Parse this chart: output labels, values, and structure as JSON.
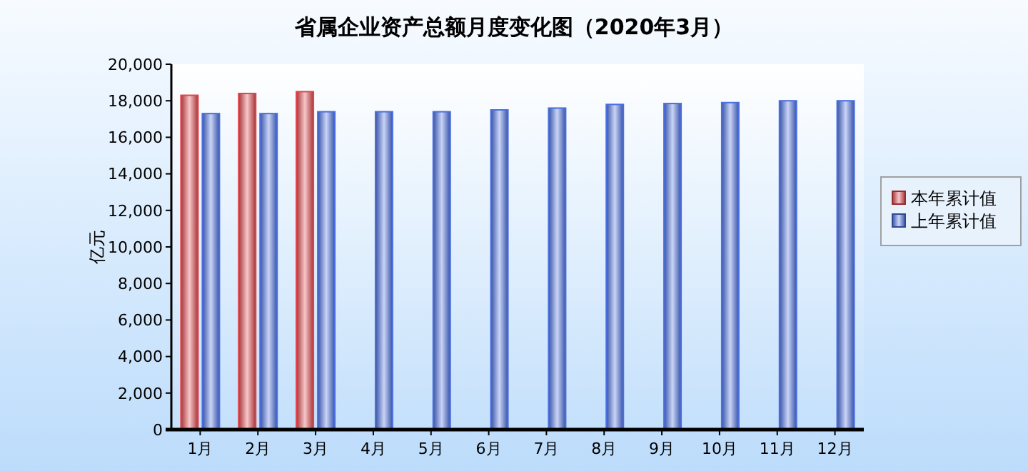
{
  "chart_data": {
    "type": "bar",
    "title": "省属企业资产总额月度变化图（2020年3月）",
    "ylabel": "亿元",
    "categories": [
      "1月",
      "2月",
      "3月",
      "4月",
      "5月",
      "6月",
      "7月",
      "8月",
      "9月",
      "10月",
      "11月",
      "12月"
    ],
    "series": [
      {
        "name": "本年累计值",
        "color": "#e0454a",
        "values": [
          18300,
          18400,
          18500,
          null,
          null,
          null,
          null,
          null,
          null,
          null,
          null,
          null
        ]
      },
      {
        "name": "上年累计值",
        "color": "#4a6fe0",
        "values": [
          17300,
          17300,
          17400,
          17400,
          17400,
          17500,
          17600,
          17800,
          17850,
          17900,
          18000,
          18000
        ]
      }
    ],
    "ylim": [
      0,
      20000
    ],
    "yticks": [
      {
        "value": 0,
        "label": "0"
      },
      {
        "value": 2000,
        "label": "2,000"
      },
      {
        "value": 4000,
        "label": "4,000"
      },
      {
        "value": 6000,
        "label": "6,000"
      },
      {
        "value": 8000,
        "label": "8,000"
      },
      {
        "value": 10000,
        "label": "10,000"
      },
      {
        "value": 12000,
        "label": "12,000"
      },
      {
        "value": 14000,
        "label": "14,000"
      },
      {
        "value": 16000,
        "label": "16,000"
      },
      {
        "value": 18000,
        "label": "18,000"
      },
      {
        "value": 20000,
        "label": "20,000"
      }
    ],
    "legend": "right",
    "grid": false
  }
}
